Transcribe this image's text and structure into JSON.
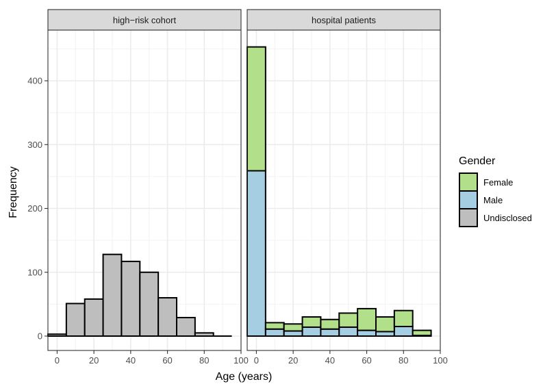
{
  "chart_data": {
    "type": "bar",
    "stacked": true,
    "xlabel": "Age (years)",
    "ylabel": "Frequency",
    "xlim": [
      -5,
      100
    ],
    "ylim": [
      0,
      460
    ],
    "x_ticks": [
      0,
      20,
      40,
      60,
      80,
      100
    ],
    "y_ticks": [
      0,
      100,
      200,
      300,
      400
    ],
    "bin_width": 10,
    "grid": true,
    "legend": {
      "title": "Gender",
      "position": "right",
      "entries": [
        {
          "label": "Female",
          "color": "#b2df8a"
        },
        {
          "label": "Male",
          "color": "#a6cee3"
        },
        {
          "label": "Undisclosed",
          "color": "#bebebe"
        }
      ]
    },
    "panels": [
      {
        "strip": "high−risk cohort",
        "bins": [
          0,
          10,
          20,
          30,
          40,
          50,
          60,
          70,
          80,
          90
        ],
        "series": [
          {
            "name": "Undisclosed",
            "values": [
              3,
              51,
              58,
              128,
              117,
              100,
              60,
              29,
              5,
              0
            ]
          }
        ]
      },
      {
        "strip": "hospital patients",
        "bins": [
          0,
          10,
          20,
          30,
          40,
          50,
          60,
          70,
          80,
          90
        ],
        "series": [
          {
            "name": "Male",
            "values": [
              259,
              11,
              8,
              14,
              11,
              14,
              9,
              7,
              15,
              1
            ]
          },
          {
            "name": "Female",
            "values": [
              194,
              10,
              11,
              16,
              15,
              22,
              34,
              23,
              25,
              8
            ]
          }
        ]
      }
    ]
  }
}
